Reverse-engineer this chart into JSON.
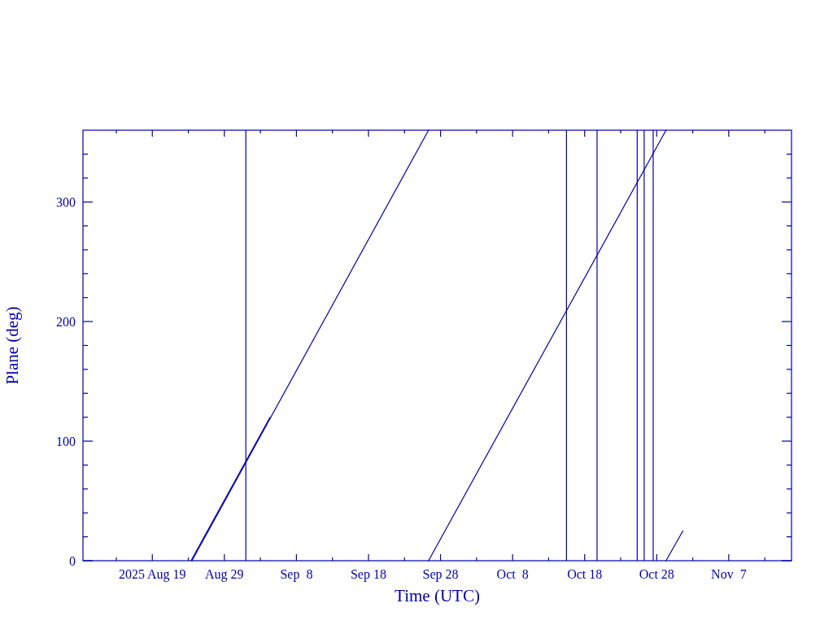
{
  "chart_data": {
    "type": "line",
    "xlabel": "Time (UTC)",
    "ylabel": "Plane (deg)",
    "xlim": [
      "2025-08-09T09:00",
      "2025-11-15T17:00"
    ],
    "xticks": [
      {
        "value": "2025-08-14",
        "label": null
      },
      {
        "value": "2025-08-19",
        "label": "2025 Aug 19"
      },
      {
        "value": "2025-08-24",
        "label": null
      },
      {
        "value": "2025-08-29",
        "label": "Aug 29"
      },
      {
        "value": "2025-09-03",
        "label": null
      },
      {
        "value": "2025-09-08",
        "label": "Sep  8"
      },
      {
        "value": "2025-09-13",
        "label": null
      },
      {
        "value": "2025-09-18",
        "label": "Sep 18"
      },
      {
        "value": "2025-09-23",
        "label": null
      },
      {
        "value": "2025-09-28",
        "label": "Sep 28"
      },
      {
        "value": "2025-10-03",
        "label": null
      },
      {
        "value": "2025-10-08",
        "label": "Oct  8"
      },
      {
        "value": "2025-10-13",
        "label": null
      },
      {
        "value": "2025-10-18",
        "label": "Oct 18"
      },
      {
        "value": "2025-10-23",
        "label": null
      },
      {
        "value": "2025-10-28",
        "label": "Oct 28"
      },
      {
        "value": "2025-11-02",
        "label": null
      },
      {
        "value": "2025-11-07",
        "label": "Nov  7"
      },
      {
        "value": "2025-11-12",
        "label": null
      }
    ],
    "ylim": [
      0,
      360
    ],
    "yticks": [
      0,
      {
        "value": 20,
        "label": null
      },
      {
        "value": 40,
        "label": null
      },
      {
        "value": 60,
        "label": null
      },
      {
        "value": 80,
        "label": null
      },
      100,
      {
        "value": 120,
        "label": null
      },
      {
        "value": 140,
        "label": null
      },
      {
        "value": 160,
        "label": null
      },
      {
        "value": 180,
        "label": null
      },
      200,
      {
        "value": 220,
        "label": null
      },
      {
        "value": 240,
        "label": null
      },
      {
        "value": 260,
        "label": null
      },
      {
        "value": 280,
        "label": null
      },
      300,
      {
        "value": 320,
        "label": null
      },
      {
        "value": 340,
        "label": null
      }
    ],
    "series": [
      {
        "color": "#0000aa",
        "x": [
          "2025-08-24T12:00",
          "2025-09-26T08:00"
        ],
        "values": [
          0,
          360
        ]
      },
      {
        "color": "#0000aa",
        "x": [
          "2025-09-26T08:00",
          "2025-10-29T07:00"
        ],
        "values": [
          0,
          360
        ]
      },
      {
        "color": "#0000aa",
        "x": [
          "2025-10-29T07:00",
          "2025-10-31T15:30"
        ],
        "values": [
          0,
          25
        ]
      },
      {
        "color": "#0000aa",
        "x": [
          "2025-08-24T09:00",
          "2025-09-04T08:00"
        ],
        "values": [
          0,
          120
        ]
      }
    ],
    "ref_lines": [
      {
        "axis": "x",
        "value": "2025-08-31T23:30",
        "color": "#0000aa"
      },
      {
        "axis": "x",
        "value": "2025-10-15T11:30",
        "color": "#0000aa"
      },
      {
        "axis": "x",
        "value": "2025-10-19T17:20",
        "color": "#0000aa"
      },
      {
        "axis": "x",
        "value": "2025-10-25T07:00",
        "color": "#0000aa"
      },
      {
        "axis": "x",
        "value": "2025-10-26T06:15",
        "color": "#0000aa"
      },
      {
        "axis": "x",
        "value": "2025-10-27T12:15",
        "color": "#0000aa"
      }
    ]
  }
}
